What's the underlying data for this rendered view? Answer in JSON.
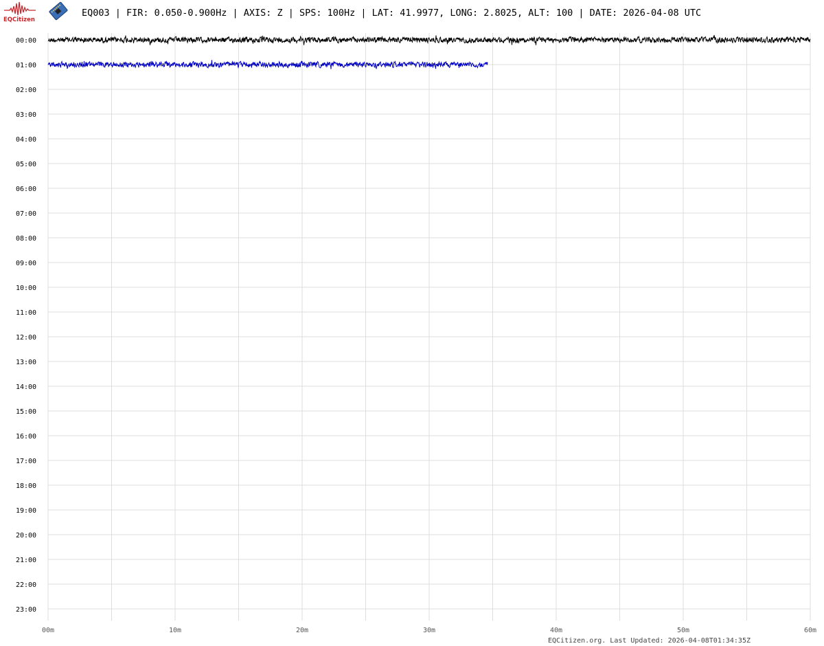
{
  "header": {
    "logo_text": "EQCitizen",
    "title": "EQ003 | FIR: 0.050-0.900Hz | AXIS: Z | SPS: 100Hz | LAT: 41.9977, LONG: 2.8025, ALT: 100 | DATE: 2026-04-08 UTC"
  },
  "footer": {
    "text": "EQCitizen.org. Last Updated: 2026-04-08T01:34:35Z"
  },
  "colors": {
    "grid": "#dddddd",
    "trace_even": "#000000",
    "trace_odd": "#0000c0",
    "logo": "#c8262b"
  },
  "chart_data": {
    "type": "line",
    "subtype": "helicorder",
    "title": "",
    "xlim": [
      0,
      60
    ],
    "x_unit": "minutes",
    "grid": true,
    "x_gridline_interval": 5,
    "x_ticks": [
      "00m",
      "10m",
      "20m",
      "30m",
      "40m",
      "50m",
      "60m"
    ],
    "y_ticks": [
      "00:00",
      "01:00",
      "02:00",
      "03:00",
      "04:00",
      "05:00",
      "06:00",
      "07:00",
      "08:00",
      "09:00",
      "10:00",
      "11:00",
      "12:00",
      "13:00",
      "14:00",
      "15:00",
      "16:00",
      "17:00",
      "18:00",
      "19:00",
      "20:00",
      "21:00",
      "22:00",
      "23:00"
    ],
    "series": [
      {
        "hour": "00:00",
        "start_minute": 0,
        "end_minute": 60,
        "color": "#000000"
      },
      {
        "hour": "01:00",
        "start_minute": 0,
        "end_minute": 34.6,
        "color": "#0000c0"
      }
    ]
  }
}
